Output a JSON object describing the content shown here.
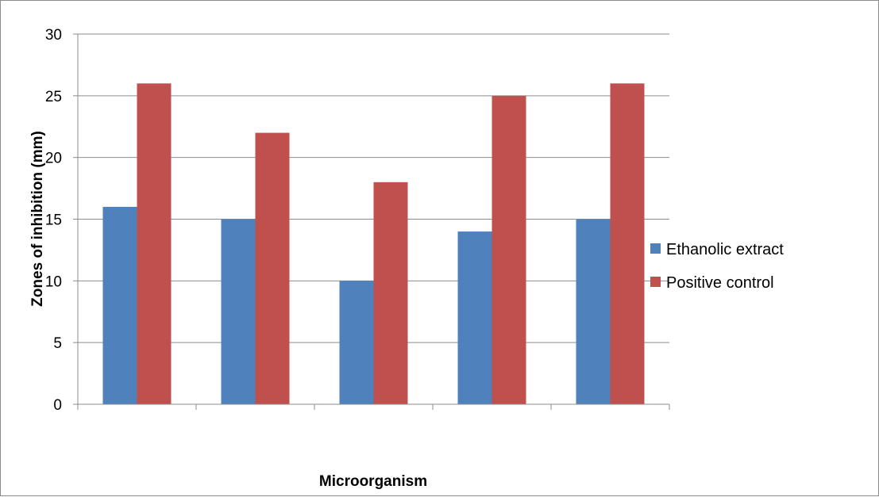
{
  "chart_data": {
    "type": "bar",
    "title": "",
    "xlabel": "Microorganism",
    "ylabel": "Zones of inhibition (mm)",
    "categories": [
      "",
      "",
      "",
      "",
      ""
    ],
    "series": [
      {
        "name": "Ethanolic extract",
        "values": [
          16,
          15,
          10,
          14,
          15
        ],
        "color": "#4f81bd"
      },
      {
        "name": "Positive control",
        "values": [
          26,
          22,
          18,
          25,
          26
        ],
        "color": "#c0504d"
      }
    ],
    "ylim": [
      0,
      30
    ],
    "yticks": [
      0,
      5,
      10,
      15,
      20,
      25,
      30
    ],
    "grid": true,
    "legend": "right"
  }
}
